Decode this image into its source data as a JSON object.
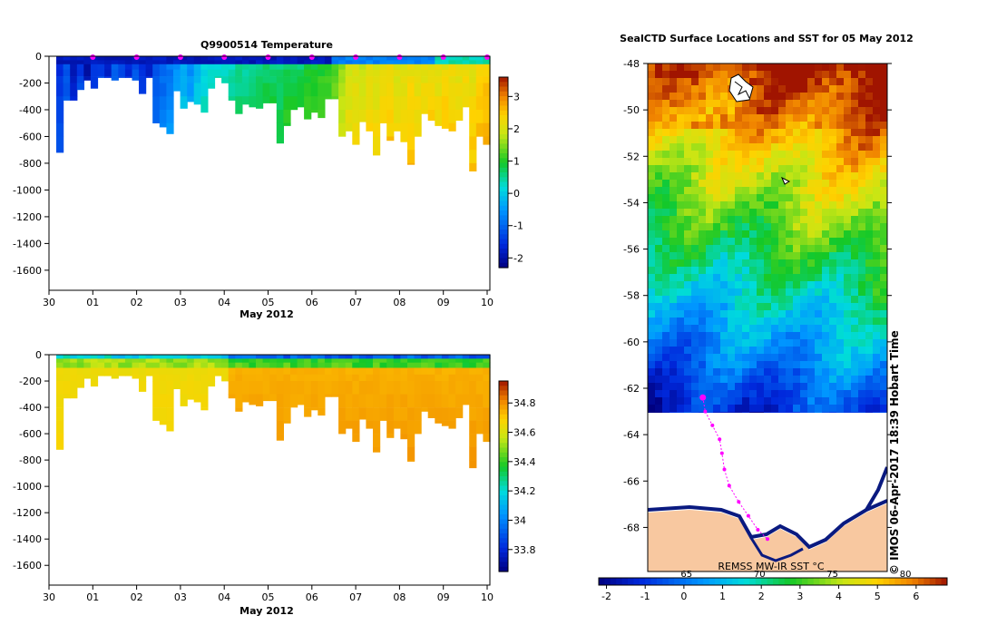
{
  "chart_data": [
    {
      "type": "heatmap",
      "title": "Q9900514  Temperature",
      "xlabel": "May 2012",
      "x_ticks": [
        "30",
        "01",
        "02",
        "03",
        "04",
        "05",
        "06",
        "07",
        "08",
        "09",
        "10"
      ],
      "y_ticks": [
        0,
        -200,
        -400,
        -600,
        -800,
        -1000,
        -1200,
        -1400,
        -1600
      ],
      "ylim": [
        -1750,
        0
      ],
      "colorbar": {
        "min": -2.3,
        "max": 3.6,
        "ticks": [
          3,
          2,
          1,
          0,
          -1,
          -2
        ],
        "labels": [
          "3",
          "2",
          "1",
          "0",
          "-1",
          "-2"
        ]
      },
      "profile_depths": [
        -720,
        -330,
        -330,
        -250,
        -180,
        -240,
        -160,
        -160,
        -180,
        -160,
        -160,
        -180,
        -280,
        -160,
        -500,
        -530,
        -580,
        -260,
        -390,
        -340,
        -360,
        -420,
        -240,
        -160,
        -200,
        -330,
        -430,
        -360,
        -380,
        -390,
        -350,
        -350,
        -650,
        -520,
        -400,
        -380,
        -470,
        -420,
        -460,
        -320,
        -320,
        -600,
        -560,
        -660,
        -490,
        -560,
        -740,
        -500,
        -630,
        -560,
        -640,
        -810,
        -600,
        -430,
        -480,
        -520,
        -540,
        -560,
        -480,
        -380,
        -860,
        -600,
        -660
      ],
      "profile_temps": [
        -1.5,
        -1.2,
        -1.8,
        -1.4,
        -2.0,
        -1.5,
        -1.3,
        -1.7,
        -1.0,
        -1.3,
        -1.6,
        -1.1,
        -1.4,
        -1.7,
        -1.2,
        -1.0,
        -0.8,
        -0.5,
        -0.3,
        -0.6,
        -0.2,
        0.1,
        0.2,
        0.3,
        0.3,
        0.4,
        0.5,
        0.5,
        0.6,
        0.6,
        0.7,
        0.7,
        0.6,
        0.8,
        0.8,
        0.7,
        0.9,
        0.9,
        1.0,
        1.1,
        1.2,
        1.6,
        1.9,
        2.0,
        1.9,
        2.1,
        2.0,
        2.1,
        2.2,
        2.0,
        2.1,
        2.2,
        2.1,
        2.1,
        2.2,
        2.1,
        2.2,
        2.2,
        2.1,
        2.2,
        2.1,
        2.3,
        2.4
      ],
      "cast_markers": [
        "01",
        "02",
        "03",
        "04",
        "05",
        "06",
        "07",
        "08",
        "09",
        "10"
      ]
    },
    {
      "type": "heatmap",
      "title": "",
      "xlabel": "May 2012",
      "x_ticks": [
        "30",
        "01",
        "02",
        "03",
        "04",
        "05",
        "06",
        "07",
        "08",
        "09",
        "10"
      ],
      "y_ticks": [
        0,
        -200,
        -400,
        -600,
        -800,
        -1000,
        -1200,
        -1400,
        -1600
      ],
      "ylim": [
        -1750,
        0
      ],
      "colorbar": {
        "min": 33.65,
        "max": 34.95,
        "ticks": [
          34.8,
          34.6,
          34.4,
          34.2,
          34,
          33.8
        ],
        "labels": [
          "34.8",
          "34.6",
          "34.4",
          "34.2",
          "34",
          "33.8"
        ]
      }
    },
    {
      "type": "heatmap",
      "title": "SealCTD Surface Locations and SST for 05 May 2012",
      "y_ticks": [
        -48,
        -50,
        -52,
        -54,
        -56,
        -58,
        -60,
        -62,
        -64,
        -66,
        -68
      ],
      "ylim": [
        -69.9,
        -48
      ],
      "colorbar": {
        "min": -2.2,
        "max": 6.8,
        "ticks": [
          -2,
          -1,
          0,
          1,
          2,
          3,
          4,
          5,
          6
        ],
        "labels": [
          "-2",
          "-1",
          "0",
          "1",
          "2",
          "3",
          "4",
          "5",
          "6"
        ]
      },
      "colorbar_secondary_labels": [
        "65",
        "70",
        "75",
        "80"
      ],
      "source_label": "REMSS MW-IR SST °C",
      "credit": "© IMOS 06-Apr-2017 18:39 Hobart Time",
      "track_lat": [
        -62.4,
        -63.0,
        -63.6,
        -64.2,
        -64.8,
        -65.5,
        -66.2,
        -66.9,
        -67.5,
        -68.1,
        -68.5
      ]
    }
  ],
  "colors": {
    "land": "#f8c8a0",
    "track": "#ff00ff",
    "coast": "#0a1a80",
    "axis": "#000000"
  }
}
